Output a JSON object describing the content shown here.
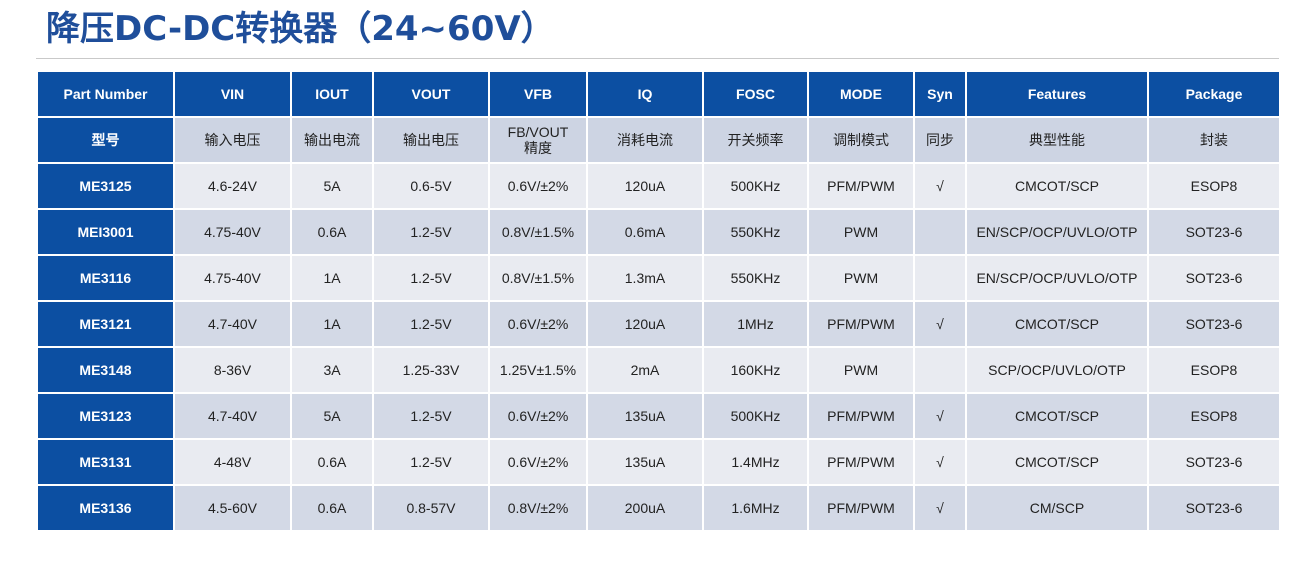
{
  "title": "降压DC-DC转换器（24~60V）",
  "columns": [
    {
      "key": "part",
      "header": "Part Number",
      "sub": "型号"
    },
    {
      "key": "vin",
      "header": "VIN",
      "sub": "输入电压"
    },
    {
      "key": "iout",
      "header": "IOUT",
      "sub": "输出电流"
    },
    {
      "key": "vout",
      "header": "VOUT",
      "sub": "输出电压"
    },
    {
      "key": "vfb",
      "header": "VFB",
      "sub": "FB/VOUT\n精度"
    },
    {
      "key": "iq",
      "header": "IQ",
      "sub": "消耗电流"
    },
    {
      "key": "fosc",
      "header": "FOSC",
      "sub": "开关频率"
    },
    {
      "key": "mode",
      "header": "MODE",
      "sub": "调制模式"
    },
    {
      "key": "syn",
      "header": "Syn",
      "sub": "同步"
    },
    {
      "key": "features",
      "header": "Features",
      "sub": "典型性能"
    },
    {
      "key": "package",
      "header": "Package",
      "sub": "封装"
    }
  ],
  "rows": [
    {
      "part": "ME3125",
      "vin": "4.6-24V",
      "iout": "5A",
      "vout": "0.6-5V",
      "vfb": "0.6V/±2%",
      "iq": "120uA",
      "fosc": "500KHz",
      "mode": "PFM/PWM",
      "syn": "√",
      "features": "CMCOT/SCP",
      "package": "ESOP8"
    },
    {
      "part": "MEI3001",
      "vin": "4.75-40V",
      "iout": "0.6A",
      "vout": "1.2-5V",
      "vfb": "0.8V/±1.5%",
      "iq": "0.6mA",
      "fosc": "550KHz",
      "mode": "PWM",
      "syn": "",
      "features": "EN/SCP/OCP/UVLO/OTP",
      "package": "SOT23-6"
    },
    {
      "part": "ME3116",
      "vin": "4.75-40V",
      "iout": "1A",
      "vout": "1.2-5V",
      "vfb": "0.8V/±1.5%",
      "iq": "1.3mA",
      "fosc": "550KHz",
      "mode": "PWM",
      "syn": "",
      "features": "EN/SCP/OCP/UVLO/OTP",
      "package": "SOT23-6"
    },
    {
      "part": "ME3121",
      "vin": "4.7-40V",
      "iout": "1A",
      "vout": "1.2-5V",
      "vfb": "0.6V/±2%",
      "iq": "120uA",
      "fosc": "1MHz",
      "mode": "PFM/PWM",
      "syn": "√",
      "features": "CMCOT/SCP",
      "package": "SOT23-6"
    },
    {
      "part": "ME3148",
      "vin": "8-36V",
      "iout": "3A",
      "vout": "1.25-33V",
      "vfb": "1.25V±1.5%",
      "iq": "2mA",
      "fosc": "160KHz",
      "mode": "PWM",
      "syn": "",
      "features": "SCP/OCP/UVLO/OTP",
      "package": "ESOP8"
    },
    {
      "part": "ME3123",
      "vin": "4.7-40V",
      "iout": "5A",
      "vout": "1.2-5V",
      "vfb": "0.6V/±2%",
      "iq": "135uA",
      "fosc": "500KHz",
      "mode": "PFM/PWM",
      "syn": "√",
      "features": "CMCOT/SCP",
      "package": "ESOP8"
    },
    {
      "part": "ME3131",
      "vin": "4-48V",
      "iout": "0.6A",
      "vout": "1.2-5V",
      "vfb": "0.6V/±2%",
      "iq": "135uA",
      "fosc": "1.4MHz",
      "mode": "PFM/PWM",
      "syn": "√",
      "features": "CMCOT/SCP",
      "package": "SOT23-6"
    },
    {
      "part": "ME3136",
      "vin": "4.5-60V",
      "iout": "0.6A",
      "vout": "0.8-57V",
      "vfb": "0.8V/±2%",
      "iq": "200uA",
      "fosc": "1.6MHz",
      "mode": "PFM/PWM",
      "syn": "√",
      "features": "CM/SCP",
      "package": "SOT23-6"
    }
  ],
  "colors": {
    "title": "#1f4e9a",
    "header_bg": "#0c4fa2",
    "subheader_bg": "#cdd4e3",
    "row_odd_bg": "#e9ebf1",
    "row_even_bg": "#d3d9e6"
  }
}
